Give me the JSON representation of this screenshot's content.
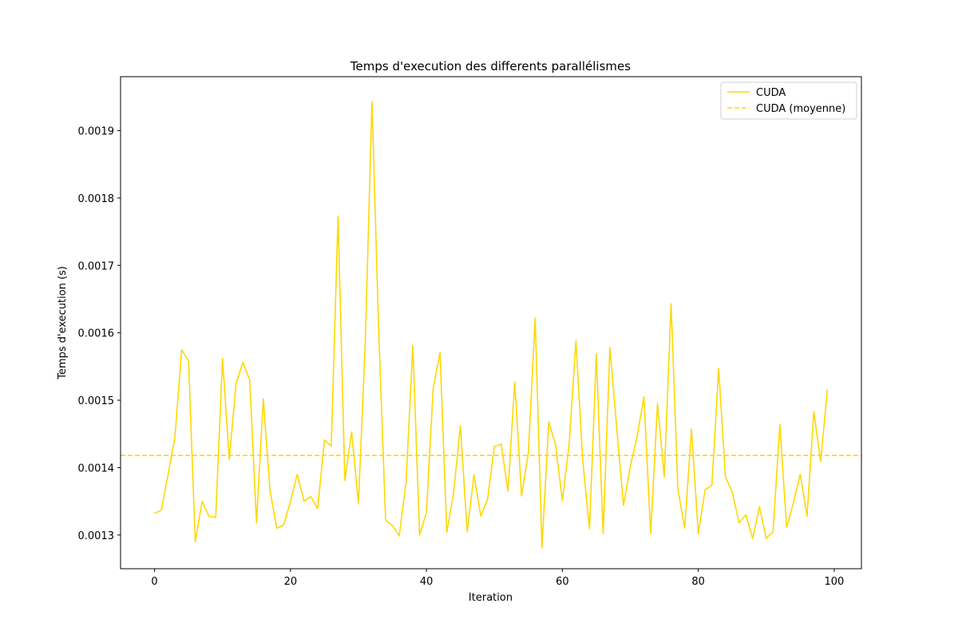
{
  "chart_data": {
    "type": "line",
    "title": "Temps d'execution des differents parallélismes",
    "xlabel": "Iteration",
    "ylabel": "Temps d'execution (s)",
    "xlim": [
      -5,
      104
    ],
    "ylim": [
      0.00125,
      0.00198
    ],
    "xticks": [
      0,
      20,
      40,
      60,
      80,
      100
    ],
    "yticks": [
      0.0013,
      0.0014,
      0.0015,
      0.0016,
      0.0017,
      0.0018,
      0.0019
    ],
    "grid": false,
    "legend_position": "top-right",
    "series": [
      {
        "name": "CUDA",
        "color": "#ffd700",
        "style": "solid",
        "x": [
          0,
          1,
          2,
          3,
          4,
          5,
          6,
          7,
          8,
          9,
          10,
          11,
          12,
          13,
          14,
          15,
          16,
          17,
          18,
          19,
          20,
          21,
          22,
          23,
          24,
          25,
          26,
          27,
          28,
          29,
          30,
          31,
          32,
          33,
          34,
          35,
          36,
          37,
          38,
          39,
          40,
          41,
          42,
          43,
          44,
          45,
          46,
          47,
          48,
          49,
          50,
          51,
          52,
          53,
          54,
          55,
          56,
          57,
          58,
          59,
          60,
          61,
          62,
          63,
          64,
          65,
          66,
          67,
          68,
          69,
          70,
          71,
          72,
          73,
          74,
          75,
          76,
          77,
          78,
          79,
          80,
          81,
          82,
          83,
          84,
          85,
          86,
          87,
          88,
          89,
          90,
          91,
          92,
          93,
          94,
          95,
          96,
          97,
          98,
          99
        ],
        "values": [
          0.001332,
          0.001337,
          0.00139,
          0.001445,
          0.001575,
          0.001558,
          0.00129,
          0.00135,
          0.001328,
          0.001326,
          0.001562,
          0.001412,
          0.001525,
          0.001556,
          0.00153,
          0.001318,
          0.001502,
          0.001365,
          0.00131,
          0.001315,
          0.00135,
          0.00139,
          0.00135,
          0.001357,
          0.001339,
          0.001441,
          0.001432,
          0.001773,
          0.001381,
          0.001453,
          0.001347,
          0.001585,
          0.001943,
          0.001596,
          0.001322,
          0.001314,
          0.001299,
          0.001378,
          0.001581,
          0.0013,
          0.001333,
          0.001518,
          0.001571,
          0.001304,
          0.001362,
          0.001462,
          0.001305,
          0.001389,
          0.001328,
          0.001353,
          0.001431,
          0.001435,
          0.001365,
          0.001527,
          0.001358,
          0.001422,
          0.001622,
          0.001281,
          0.001468,
          0.001434,
          0.001351,
          0.001435,
          0.001588,
          0.00141,
          0.001309,
          0.001568,
          0.001302,
          0.001578,
          0.001459,
          0.001344,
          0.001402,
          0.001446,
          0.001505,
          0.001302,
          0.001495,
          0.001386,
          0.001643,
          0.001368,
          0.00131,
          0.001457,
          0.001302,
          0.001367,
          0.001374,
          0.001547,
          0.001386,
          0.001364,
          0.001318,
          0.00133,
          0.001295,
          0.001342,
          0.001295,
          0.001305,
          0.001464,
          0.001311,
          0.001348,
          0.00139,
          0.001328,
          0.001483,
          0.001409,
          0.001516
        ]
      },
      {
        "name": "CUDA (moyenne)",
        "color": "#ffd700",
        "style": "dashed",
        "value": 0.001418
      }
    ]
  }
}
